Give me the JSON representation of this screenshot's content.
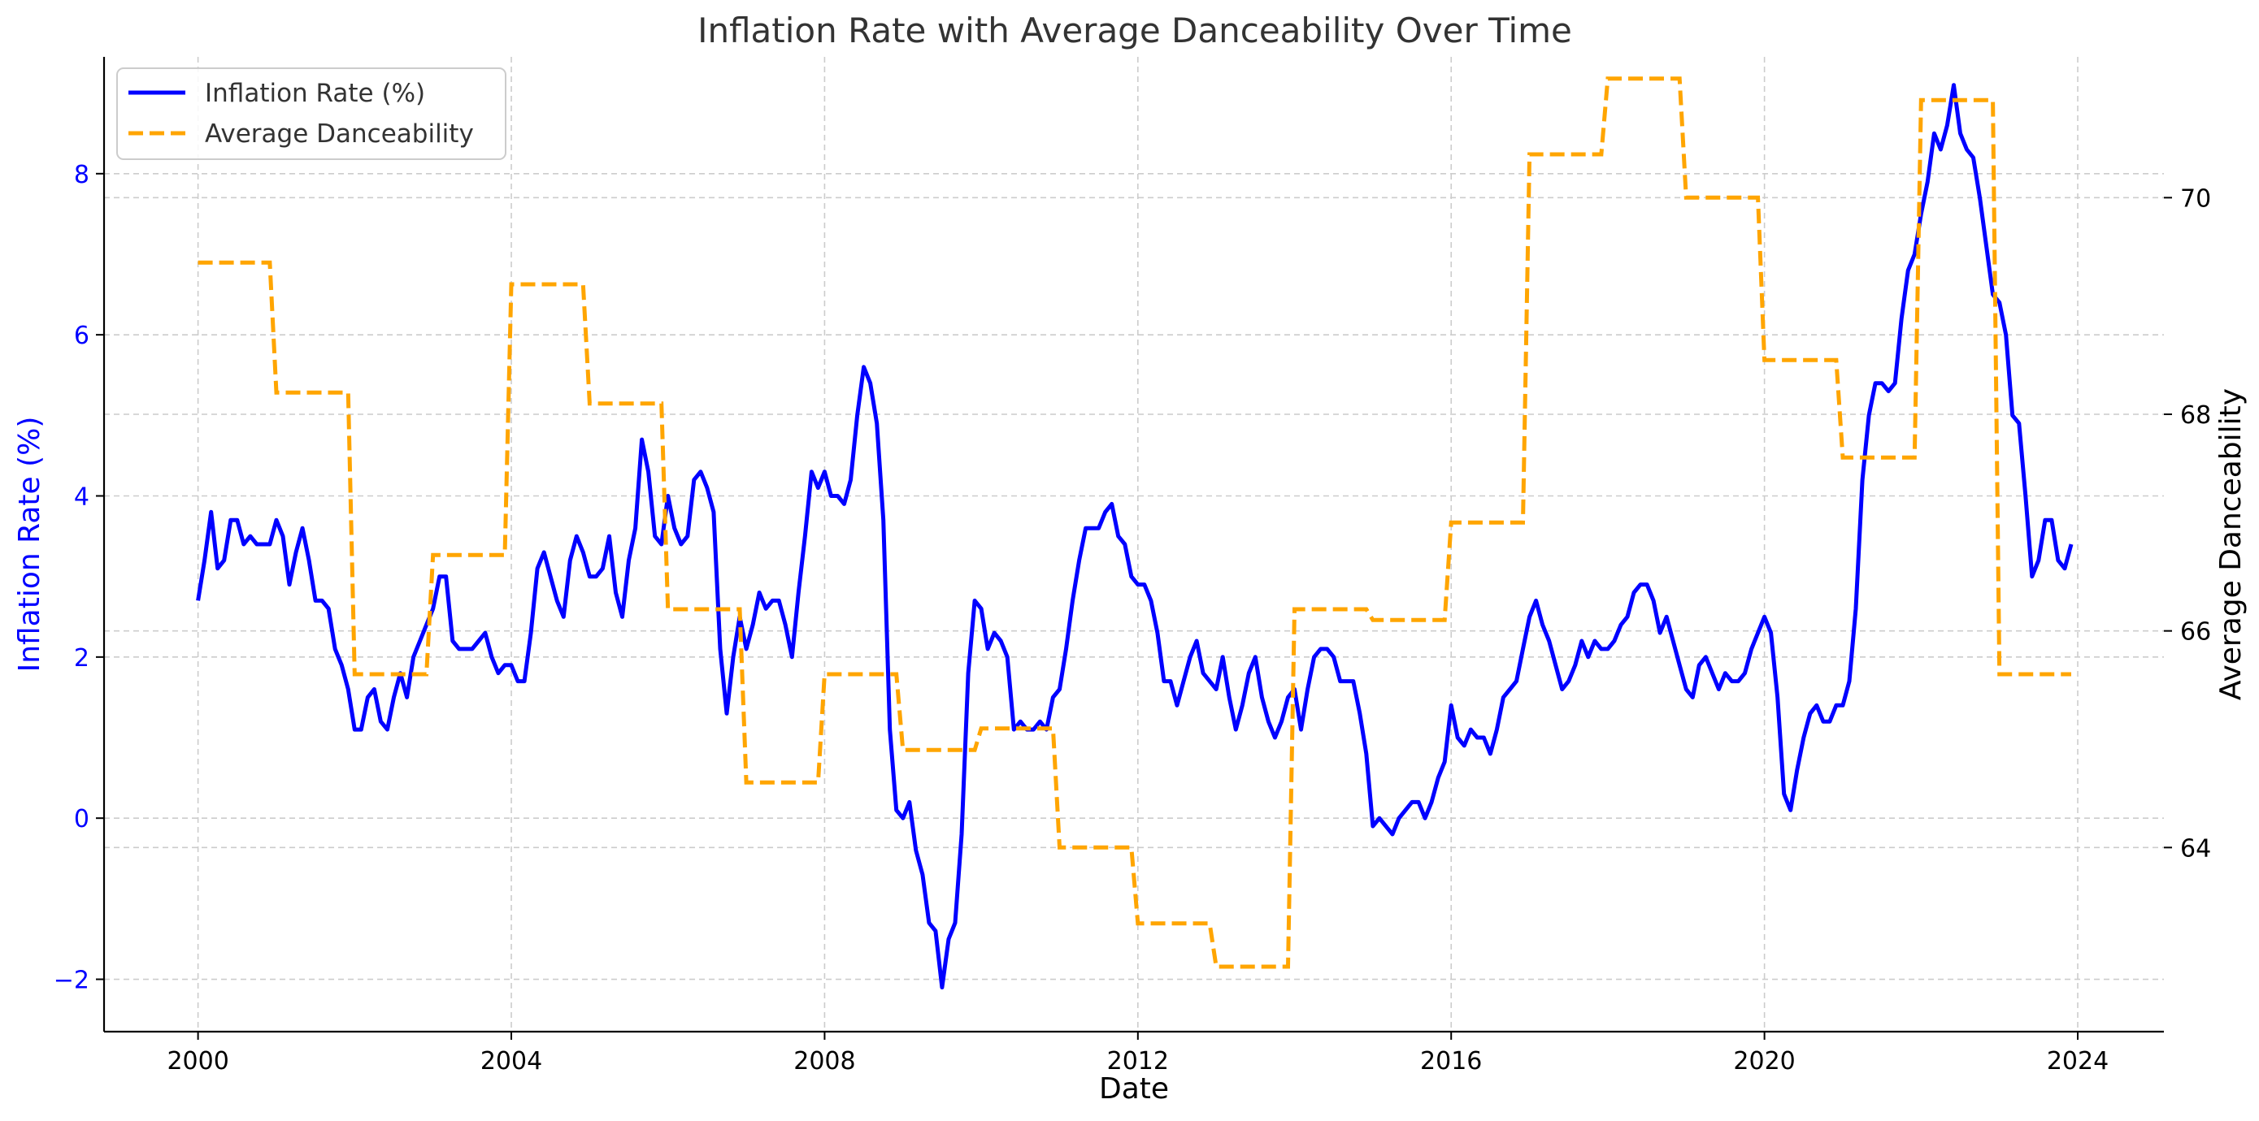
{
  "chart_data": {
    "type": "line",
    "title": "Inflation Rate with Average Danceability Over Time",
    "xlabel": "Date",
    "ylabel_left": "Inflation Rate (%)",
    "ylabel_right": "Average Danceability",
    "x_ticks": [
      "2000",
      "2004",
      "2008",
      "2012",
      "2016",
      "2020",
      "2024"
    ],
    "x_range": [
      1998.8,
      2025.1
    ],
    "y_left_ticks": [
      -2,
      0,
      2,
      4,
      6,
      8
    ],
    "y_left_range": [
      -2.65,
      9.45
    ],
    "y_right_ticks": [
      64,
      66,
      68,
      70
    ],
    "y_right_range": [
      62.3,
      71.3
    ],
    "grid": true,
    "legend_position": "top-left",
    "colors": {
      "inflation": "#0000ff",
      "danceability": "#ffa500",
      "left_axis_text": "#0000ff"
    },
    "series": [
      {
        "name": "Inflation Rate (%)",
        "axis": "left",
        "style": "solid",
        "start": "2000-01",
        "frequency": "monthly",
        "values": [
          2.7,
          3.2,
          3.8,
          3.1,
          3.2,
          3.7,
          3.7,
          3.4,
          3.5,
          3.4,
          3.4,
          3.4,
          3.7,
          3.5,
          2.9,
          3.3,
          3.6,
          3.2,
          2.7,
          2.7,
          2.6,
          2.1,
          1.9,
          1.6,
          1.1,
          1.1,
          1.5,
          1.6,
          1.2,
          1.1,
          1.5,
          1.8,
          1.5,
          2.0,
          2.2,
          2.4,
          2.6,
          3.0,
          3.0,
          2.2,
          2.1,
          2.1,
          2.1,
          2.2,
          2.3,
          2.0,
          1.8,
          1.9,
          1.9,
          1.7,
          1.7,
          2.3,
          3.1,
          3.3,
          3.0,
          2.7,
          2.5,
          3.2,
          3.5,
          3.3,
          3.0,
          3.0,
          3.1,
          3.5,
          2.8,
          2.5,
          3.2,
          3.6,
          4.7,
          4.3,
          3.5,
          3.4,
          4.0,
          3.6,
          3.4,
          3.5,
          4.2,
          4.3,
          4.1,
          3.8,
          2.1,
          1.3,
          2.0,
          2.5,
          2.1,
          2.4,
          2.8,
          2.6,
          2.7,
          2.7,
          2.4,
          2.0,
          2.8,
          3.5,
          4.3,
          4.1,
          4.3,
          4.0,
          4.0,
          3.9,
          4.2,
          5.0,
          5.6,
          5.4,
          4.9,
          3.7,
          1.1,
          0.1,
          0.0,
          0.2,
          -0.4,
          -0.7,
          -1.3,
          -1.4,
          -2.1,
          -1.5,
          -1.3,
          -0.2,
          1.8,
          2.7,
          2.6,
          2.1,
          2.3,
          2.2,
          2.0,
          1.1,
          1.2,
          1.1,
          1.1,
          1.2,
          1.1,
          1.5,
          1.6,
          2.1,
          2.7,
          3.2,
          3.6,
          3.6,
          3.6,
          3.8,
          3.9,
          3.5,
          3.4,
          3.0,
          2.9,
          2.9,
          2.7,
          2.3,
          1.7,
          1.7,
          1.4,
          1.7,
          2.0,
          2.2,
          1.8,
          1.7,
          1.6,
          2.0,
          1.5,
          1.1,
          1.4,
          1.8,
          2.0,
          1.5,
          1.2,
          1.0,
          1.2,
          1.5,
          1.6,
          1.1,
          1.6,
          2.0,
          2.1,
          2.1,
          2.0,
          1.7,
          1.7,
          1.7,
          1.3,
          0.8,
          -0.1,
          0.0,
          -0.1,
          -0.2,
          0.0,
          0.1,
          0.2,
          0.2,
          0.0,
          0.2,
          0.5,
          0.7,
          1.4,
          1.0,
          0.9,
          1.1,
          1.0,
          1.0,
          0.8,
          1.1,
          1.5,
          1.6,
          1.7,
          2.1,
          2.5,
          2.7,
          2.4,
          2.2,
          1.9,
          1.6,
          1.7,
          1.9,
          2.2,
          2.0,
          2.2,
          2.1,
          2.1,
          2.2,
          2.4,
          2.5,
          2.8,
          2.9,
          2.9,
          2.7,
          2.3,
          2.5,
          2.2,
          1.9,
          1.6,
          1.5,
          1.9,
          2.0,
          1.8,
          1.6,
          1.8,
          1.7,
          1.7,
          1.8,
          2.1,
          2.3,
          2.5,
          2.3,
          1.5,
          0.3,
          0.1,
          0.6,
          1.0,
          1.3,
          1.4,
          1.2,
          1.2,
          1.4,
          1.4,
          1.7,
          2.6,
          4.2,
          5.0,
          5.4,
          5.4,
          5.3,
          5.4,
          6.2,
          6.8,
          7.0,
          7.5,
          7.9,
          8.5,
          8.3,
          8.6,
          9.1,
          8.5,
          8.3,
          8.2,
          7.7,
          7.1,
          6.5,
          6.4,
          6.0,
          5.0,
          4.9,
          4.0,
          3.0,
          3.2,
          3.7,
          3.7,
          3.2,
          3.1,
          3.4
        ]
      },
      {
        "name": "Average Danceability",
        "axis": "right",
        "style": "dashed",
        "step": "annual",
        "years": [
          2000,
          2001,
          2002,
          2003,
          2004,
          2005,
          2006,
          2007,
          2008,
          2009,
          2010,
          2011,
          2012,
          2013,
          2014,
          2015,
          2016,
          2017,
          2018,
          2019,
          2020,
          2021,
          2022,
          2023
        ],
        "values": [
          69.4,
          68.2,
          65.6,
          66.7,
          69.2,
          68.1,
          66.2,
          64.6,
          65.6,
          64.9,
          65.1,
          64.0,
          63.3,
          62.9,
          66.2,
          66.1,
          67.0,
          70.4,
          71.1,
          70.0,
          68.5,
          67.6,
          70.9,
          65.6
        ]
      }
    ]
  }
}
